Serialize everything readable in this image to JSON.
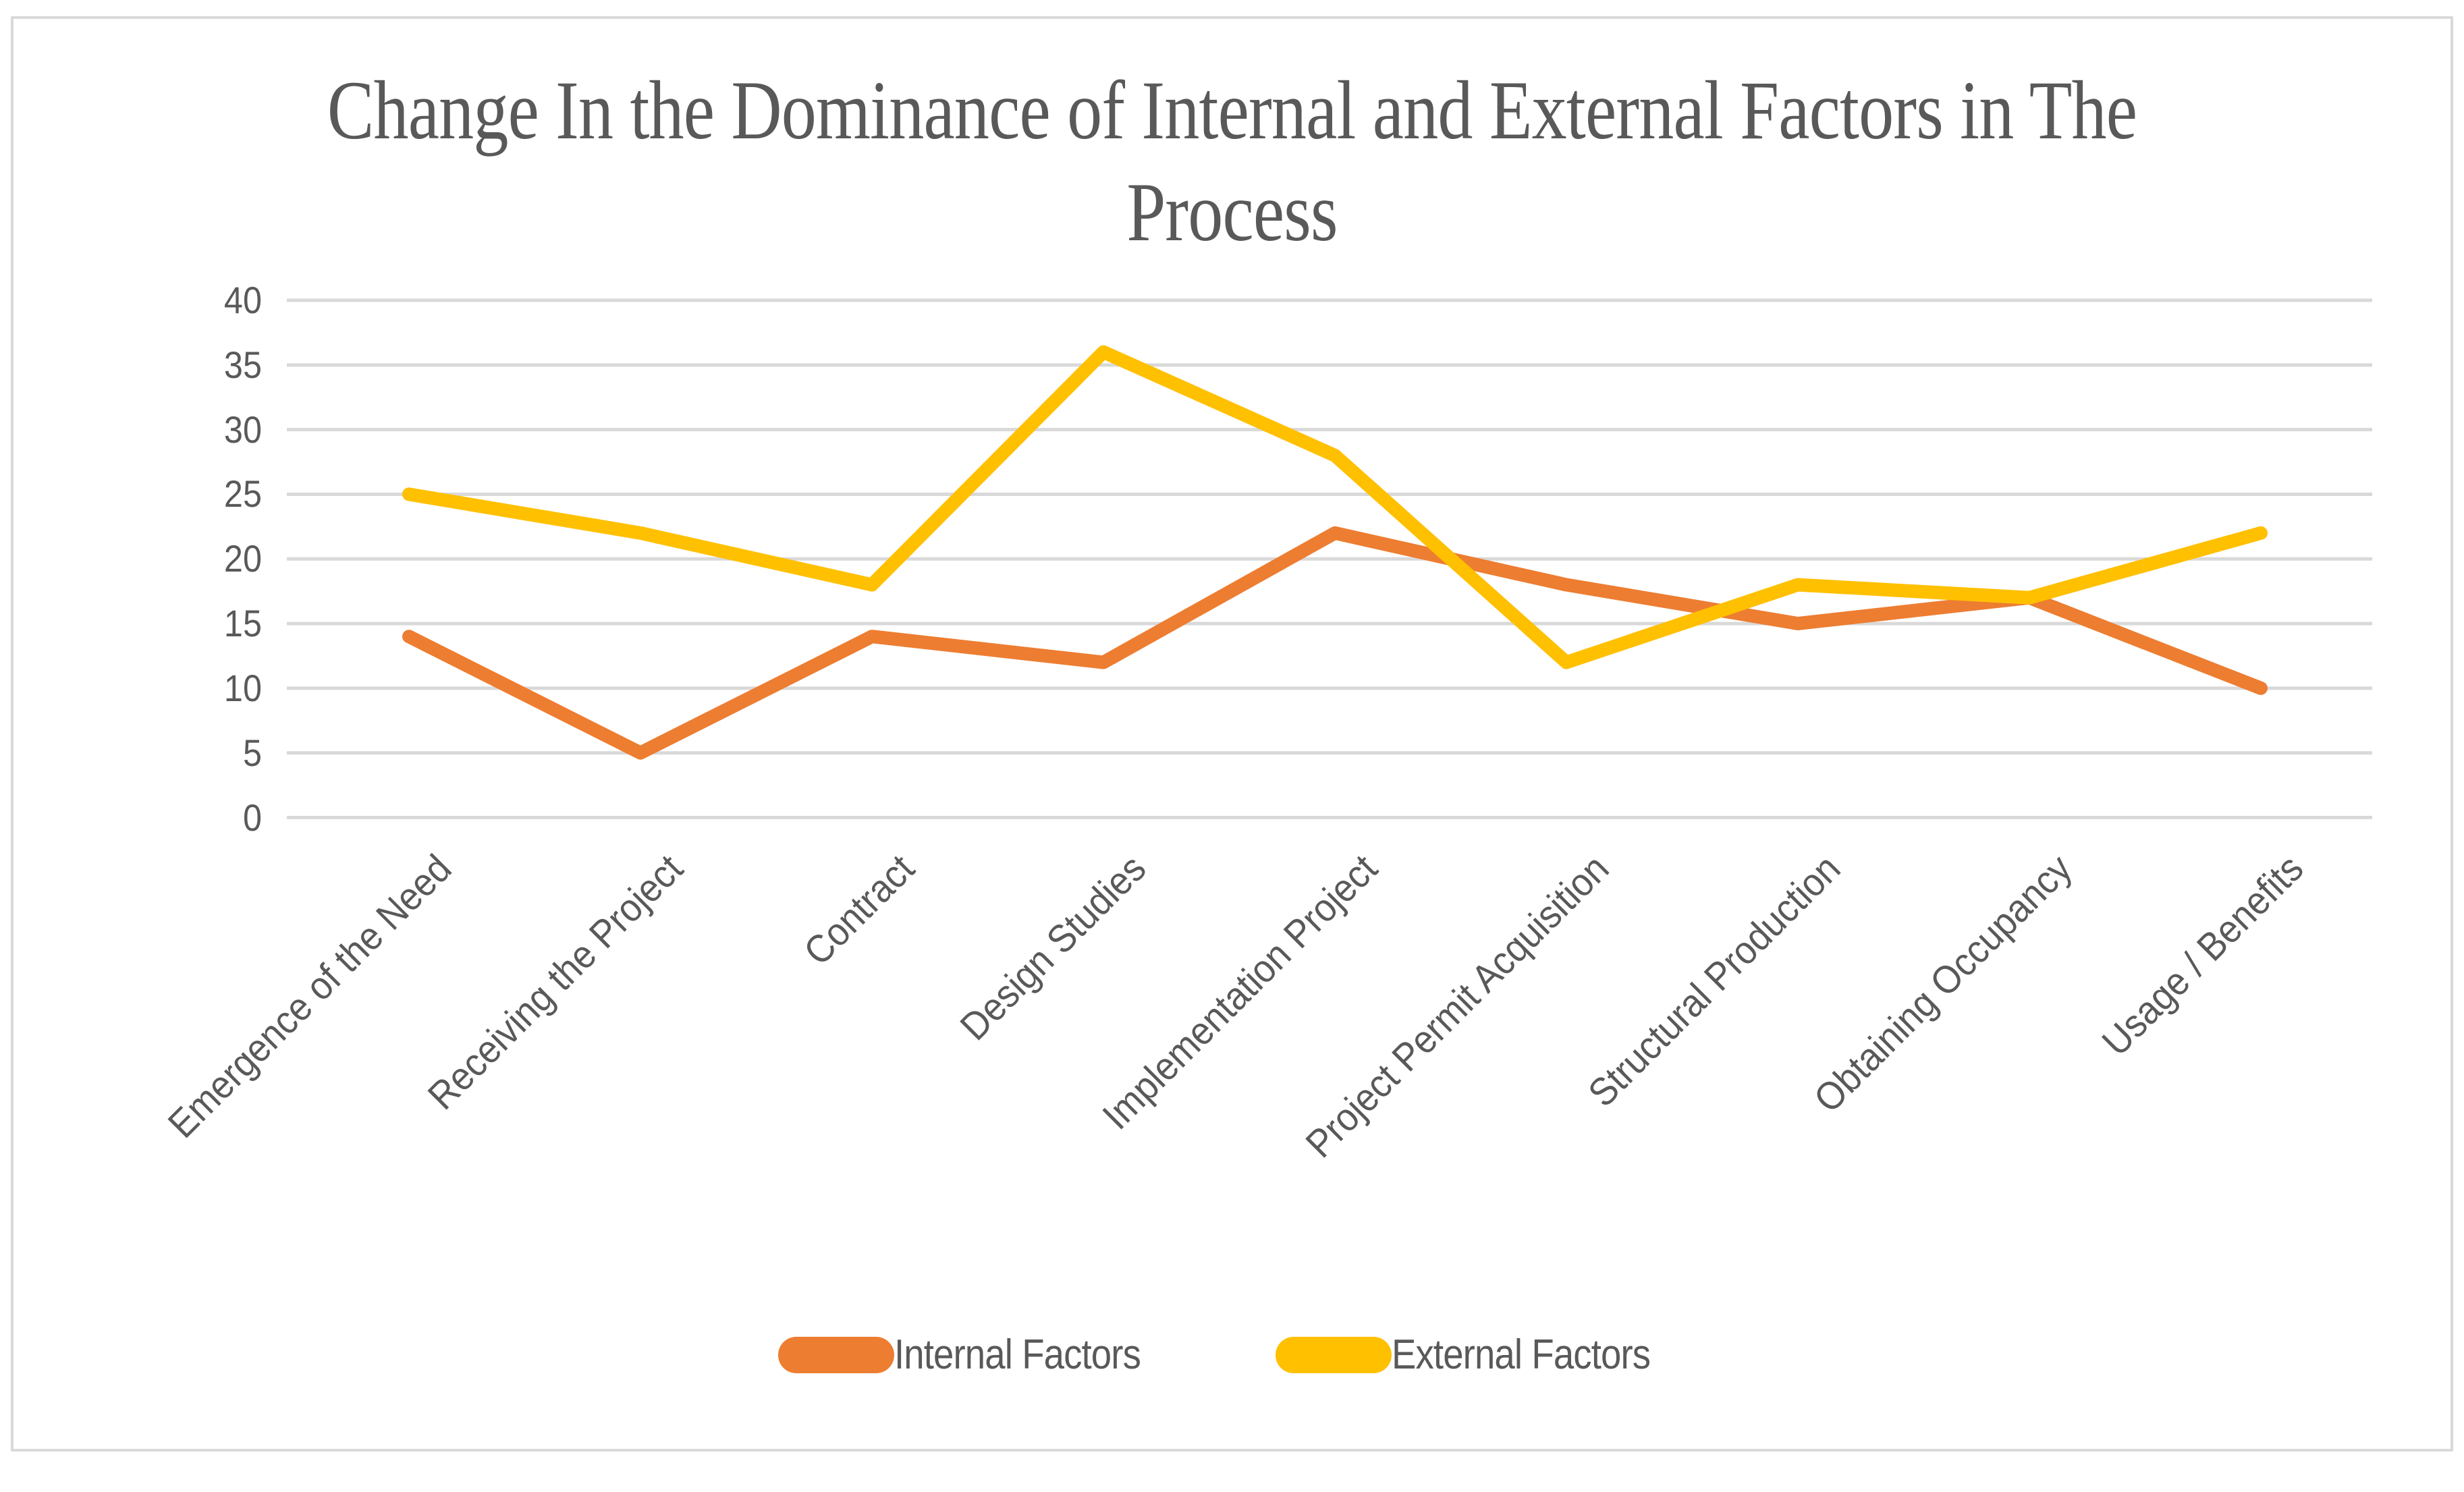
{
  "title_lines": [
    "Change In the Dominance of Internal and External Factors in The",
    "Process"
  ],
  "chart_data": {
    "type": "line",
    "title": "Change In the Dominance of Internal and External Factors in The Process",
    "categories": [
      "Emergence of the Need",
      "Receiving the Project",
      "Contract",
      "Design Studies",
      "Implementation Project",
      "Project Permit Acquisition",
      "Structural Production",
      "Obtaining Occupancy",
      "Usage / Benefits"
    ],
    "series": [
      {
        "name": "Internal Factors",
        "color": "#ED7D31",
        "values": [
          14,
          5,
          14,
          12,
          22,
          18,
          15,
          17,
          10
        ]
      },
      {
        "name": "External Factors",
        "color": "#FFC000",
        "values": [
          25,
          22,
          18,
          36,
          28,
          12,
          18,
          17,
          22
        ]
      }
    ],
    "xlabel": "",
    "ylabel": "",
    "ylim": [
      0,
      40
    ],
    "ystep": 5,
    "ytick_labels": [
      "0",
      "5",
      "10",
      "15",
      "20",
      "25",
      "30",
      "35",
      "40"
    ],
    "grid": true,
    "gridline_color": "#D9D9D9",
    "text_color": "#595959",
    "legend_position": "bottom"
  }
}
